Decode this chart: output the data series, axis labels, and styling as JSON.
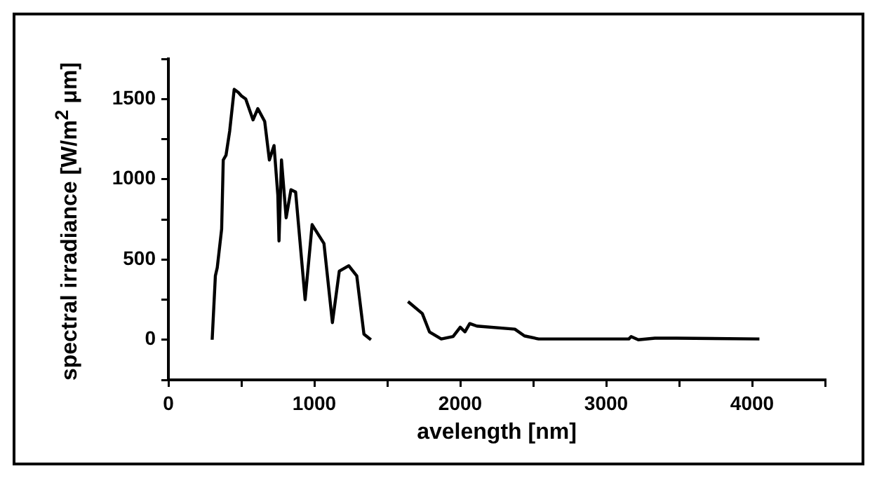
{
  "chart_data": {
    "type": "line",
    "xlabel": "avelength [nm]",
    "ylabel": "spectral irradiance [W/m$^{2}$ μm]",
    "x": [
      300,
      322,
      335,
      365,
      376,
      395,
      420,
      451,
      480,
      500,
      530,
      580,
      613,
      660,
      692,
      724,
      750,
      758,
      775,
      807,
      840,
      872,
      937,
      985,
      1066,
      1124,
      1171,
      1236,
      1291,
      1340,
      1388,
      1500,
      1642,
      1740,
      1789,
      1870,
      1951,
      2000,
      2032,
      2065,
      2114,
      2374,
      2440,
      2537,
      3155,
      3171,
      3220,
      3334,
      3480,
      4050
    ],
    "series": [
      {
        "color": "#000000",
        "values": [
          0,
          398,
          450,
          690,
          1120,
          1150,
          1300,
          1560,
          1540,
          1520,
          1500,
          1370,
          1440,
          1360,
          1120,
          1210,
          900,
          616,
          1120,
          760,
          935,
          920,
          250,
          717,
          600,
          107,
          427,
          461,
          398,
          35,
          0,
          null,
          238,
          163,
          49,
          5,
          20,
          78,
          49,
          101,
          85,
          66,
          24,
          5,
          5,
          20,
          0,
          10,
          10,
          5
        ]
      }
    ],
    "xlim": [
      0,
      4500
    ],
    "xticks": [
      0,
      {
        "value": 500,
        "label": null
      },
      1000,
      {
        "value": 1500,
        "label": null
      },
      2000,
      {
        "value": 2500,
        "label": null
      },
      3000,
      {
        "value": 3500,
        "label": null
      },
      4000,
      {
        "value": 4500,
        "label": null
      }
    ],
    "ylim": [
      -250,
      1750
    ],
    "yticks": [
      {
        "value": -250,
        "label": null
      },
      0,
      {
        "value": 250,
        "label": null
      },
      500,
      {
        "value": 750,
        "label": null
      },
      1000,
      {
        "value": 1250,
        "label": null
      },
      1500,
      {
        "value": 1750,
        "label": null
      }
    ],
    "grid": false,
    "legend": false,
    "marker": "none",
    "line_style": "solid"
  }
}
